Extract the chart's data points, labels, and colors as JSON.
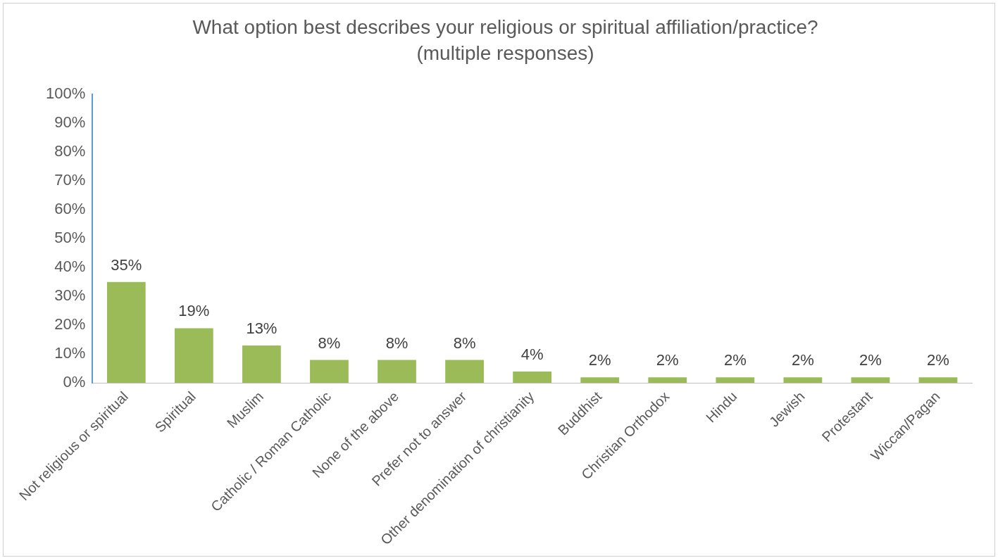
{
  "chart_data": {
    "type": "bar",
    "title": "What option best describes your religious or spiritual affiliation/practice?",
    "subtitle": "(multiple responses)",
    "categories": [
      "Not religious or spiritual",
      "Spiritual",
      "Muslim",
      "Catholic / Roman Catholic",
      "None of the above",
      "Prefer not to answer",
      "Other denomination of christianity",
      "Buddhist",
      "Christian Orthodox",
      "Hindu",
      "Jewish",
      "Protestant",
      "Wiccan/Pagan"
    ],
    "values": [
      35,
      19,
      13,
      8,
      8,
      8,
      4,
      2,
      2,
      2,
      2,
      2,
      2
    ],
    "value_labels": [
      "35%",
      "19%",
      "13%",
      "8%",
      "8%",
      "8%",
      "4%",
      "2%",
      "2%",
      "2%",
      "2%",
      "2%",
      "2%"
    ],
    "color": "#9bbb59",
    "ylim": [
      0,
      100
    ],
    "yticks": [
      {
        "value": 0,
        "label": "0%"
      },
      {
        "value": 10,
        "label": "10%"
      },
      {
        "value": 20,
        "label": "20%"
      },
      {
        "value": 30,
        "label": "30%"
      },
      {
        "value": 40,
        "label": "40%"
      },
      {
        "value": 50,
        "label": "50%"
      },
      {
        "value": 60,
        "label": "60%"
      },
      {
        "value": 70,
        "label": "70%"
      },
      {
        "value": 80,
        "label": "80%"
      },
      {
        "value": 90,
        "label": "90%"
      },
      {
        "value": 100,
        "label": "100%"
      }
    ],
    "legend": false
  }
}
